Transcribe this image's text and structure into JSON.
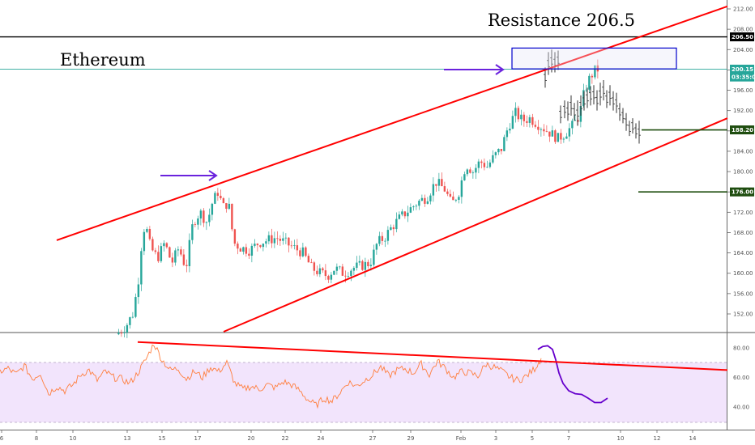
{
  "chart_data": [
    {
      "type": "candlestick",
      "title": "Ethereum",
      "annotation": "Resistance 206.5",
      "ylim": [
        148,
        213
      ],
      "y_ticks": [
        "212.00",
        "208.00",
        "204.00",
        "200.00",
        "196.00",
        "192.00",
        "188.00",
        "184.00",
        "180.00",
        "176.00",
        "172.00",
        "168.00",
        "164.00",
        "160.00",
        "156.00",
        "152.00"
      ],
      "x_ticks": [
        "6",
        "8",
        "10",
        "13",
        "15",
        "17",
        "20",
        "22",
        "24",
        "27",
        "29",
        "Feb",
        "3",
        "5",
        "7",
        "10",
        "12",
        "14"
      ],
      "price_tags": [
        {
          "label": "206.50",
          "value": 206.5,
          "color": "#000000"
        },
        {
          "label": "200.15",
          "value": 200.15,
          "color": "#26a69a"
        },
        {
          "label": "03:35:00",
          "value": 198.6,
          "color": "#26a69a"
        },
        {
          "label": "188.20",
          "value": 188.2,
          "color": "#1e4d0f"
        },
        {
          "label": "176.00",
          "value": 176.0,
          "color": "#1e4d0f"
        }
      ],
      "horizontal_lines": [
        {
          "name": "resistance",
          "value": 206.5,
          "color": "#000000"
        },
        {
          "name": "last-price",
          "value": 200.15,
          "color": "#26a69a"
        }
      ],
      "trend_lines": [
        {
          "name": "upper-channel",
          "from": {
            "x": "Jan 2",
            "y": 166.5
          },
          "to": {
            "x": "Feb 16",
            "y": 212.5
          },
          "color": "#ff0000"
        },
        {
          "name": "lower-channel",
          "from": {
            "x": "Jan 18",
            "y": 148.5
          },
          "to": {
            "x": "Feb 16",
            "y": 190.5
          },
          "color": "#ff0000"
        }
      ],
      "resistance_box": {
        "from": "Feb 4",
        "to": "Feb 13",
        "y_range": [
          200.2,
          204.3
        ],
        "color": "#0000cc"
      },
      "target_levels": [
        188.2,
        176.0
      ]
    },
    {
      "type": "line",
      "name": "rsi-panel",
      "ylim": [
        33,
        89
      ],
      "y_ticks": [
        "80.00",
        "60.00",
        "40.00"
      ],
      "band": [
        30,
        70
      ],
      "trend_line": {
        "from": 84,
        "to": 65,
        "color": "#ff0000"
      },
      "projection_color": "#6600cc"
    }
  ],
  "colors": {
    "up": "#26a69a",
    "down": "#ef5350",
    "projection": "#333333",
    "arrow": "#6a22dd",
    "rsi": "#ff7f3f",
    "rsi_band": "#f2e4fc"
  },
  "icons": [
    "arrow-right-icon",
    "arrow-right-icon"
  ]
}
